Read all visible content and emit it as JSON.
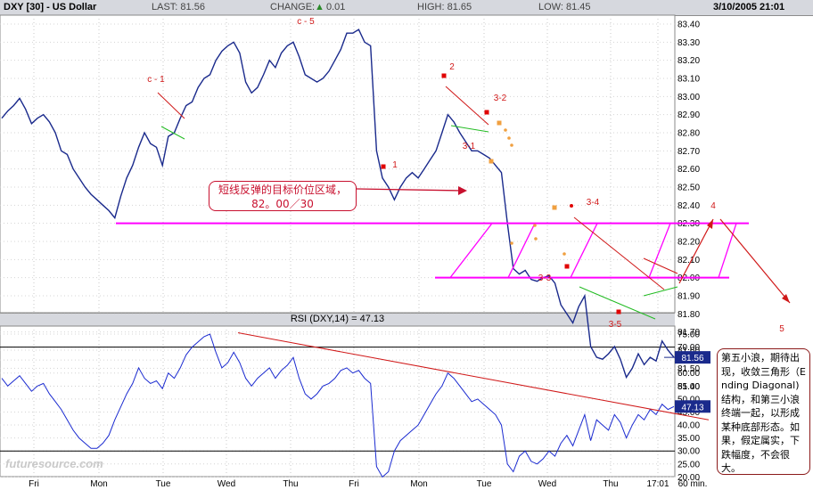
{
  "header": {
    "symbol": "DXY [30] - US Dollar",
    "last_label": "LAST: 81.56",
    "change_label": "CHANGE:",
    "change_value": "0.01",
    "high_label": "HIGH: 81.65",
    "low_label": "LOW: 81.45",
    "datetime": "3/10/2005 21:01"
  },
  "rsi_title": "RSI (DXY,14) = 47.13",
  "price_badge": "81.56",
  "rsi_badge": "47.13",
  "period_label": "60 min.",
  "watermark": "futuresource.com",
  "callout1": {
    "line1": "短线反弹的目标价位区域，",
    "line2": "82。00／30"
  },
  "callout2": {
    "text": "第五小浪，期待出现，收敛三角形（Ending Diagonal)结构，和第三小浪终端一起，以形成某种底部形态。如果，假定属实，下跌幅度，不会很大。"
  },
  "chart_data": [
    {
      "type": "line",
      "title": "DXY [30] - US Dollar",
      "ylim": [
        81.25,
        83.5
      ],
      "yticks": [
        "83.40",
        "83.30",
        "83.20",
        "83.10",
        "83.00",
        "82.90",
        "82.80",
        "82.70",
        "82.60",
        "82.50",
        "82.40",
        "82.30",
        "82.20",
        "82.10",
        "82.00",
        "81.90",
        "81.80",
        "81.70",
        "81.60",
        "81.50",
        "81.40"
      ],
      "yvalues": [
        83.4,
        83.3,
        83.2,
        83.1,
        83.0,
        82.9,
        82.8,
        82.7,
        82.6,
        82.5,
        82.4,
        82.3,
        82.2,
        82.1,
        82.0,
        81.9,
        81.8,
        81.7,
        81.6,
        81.5,
        81.4
      ],
      "xticks": [
        "Fri",
        "Mon",
        "Tue",
        "Wed",
        "Thu",
        "Fri",
        "Mon",
        "Tue",
        "Wed",
        "Thu",
        "17:01"
      ],
      "xlabel": "60 min.",
      "series": [
        {
          "values": [
            82.88,
            82.92,
            82.95,
            82.99,
            82.93,
            82.85,
            82.88,
            82.9,
            82.86,
            82.8,
            82.7,
            82.68,
            82.6,
            82.55,
            82.5,
            82.46,
            82.43,
            82.4,
            82.37,
            82.33,
            82.45,
            82.55,
            82.62,
            82.72,
            82.8,
            82.74,
            82.72,
            82.62,
            82.78,
            82.8,
            82.88,
            82.95,
            82.97,
            83.05,
            83.1,
            83.12,
            83.2,
            83.25,
            83.28,
            83.3,
            83.24,
            83.08,
            83.02,
            83.05,
            83.12,
            83.2,
            83.16,
            83.24,
            83.28,
            83.3,
            83.22,
            83.12,
            83.1,
            83.08,
            83.1,
            83.14,
            83.2,
            83.26,
            83.35,
            83.35,
            83.37,
            83.3,
            83.28,
            82.7,
            82.55,
            82.5,
            82.43,
            82.5,
            82.55,
            82.58,
            82.55,
            82.6,
            82.65,
            82.7,
            82.8,
            82.9,
            82.86,
            82.8,
            82.75,
            82.7,
            82.7,
            82.68,
            82.66,
            82.62,
            82.58,
            82.3,
            82.05,
            82.02,
            82.04,
            81.99,
            81.98,
            82.0,
            82.01,
            81.97,
            81.85,
            81.8,
            81.75,
            81.84,
            81.9,
            81.62,
            81.56,
            81.55,
            81.58,
            81.62,
            81.55,
            81.45,
            81.5,
            81.58,
            81.52,
            81.56,
            81.54,
            81.65,
            81.6,
            81.56
          ]
        }
      ],
      "annotations": [
        {
          "text": "c - 5",
          "x": "Thu",
          "y": 83.43
        },
        {
          "text": "c - 1",
          "x": "Tue",
          "y": 82.93
        },
        {
          "text": "2",
          "x": "Mon",
          "y": 83.02
        },
        {
          "text": "1",
          "x": "Fri",
          "y": 82.36
        },
        {
          "text": "3-2",
          "x": "Tue",
          "y": 82.85
        },
        {
          "text": "3-1",
          "x": "Tue",
          "y": 82.58
        },
        {
          "text": "3-4",
          "x": "Wed",
          "y": 82.13
        },
        {
          "text": "3-3",
          "x": "Wed",
          "y": 81.51
        },
        {
          "text": "3-5",
          "x": "Thu",
          "y": 81.33
        },
        {
          "text": "4",
          "x": "Thu",
          "y": 82.1
        },
        {
          "text": "5",
          "x": "Thu",
          "y": 81.28
        }
      ],
      "levels": [
        82.3,
        82.0
      ]
    },
    {
      "type": "line",
      "title": "RSI (DXY,14) = 47.13",
      "ylim": [
        15,
        80
      ],
      "yticks": [
        "75.00",
        "70.00",
        "65.00",
        "60.00",
        "55.00",
        "50.00",
        "45.00",
        "40.00",
        "35.00",
        "30.00",
        "25.00",
        "20.00"
      ],
      "yvalues": [
        75,
        70,
        65,
        60,
        55,
        50,
        45,
        40,
        35,
        30,
        25,
        20
      ],
      "levels": [
        70,
        30
      ],
      "series": [
        {
          "values": [
            58,
            55,
            57,
            59,
            56,
            53,
            55,
            56,
            52,
            49,
            46,
            42,
            38,
            35,
            33,
            31,
            31,
            33,
            36,
            42,
            47,
            52,
            56,
            62,
            58,
            56,
            57,
            54,
            60,
            58,
            62,
            67,
            70,
            72,
            74,
            75,
            68,
            62,
            64,
            68,
            64,
            58,
            55,
            58,
            60,
            62,
            58,
            61,
            63,
            66,
            58,
            52,
            50,
            52,
            55,
            56,
            58,
            61,
            62,
            60,
            61,
            58,
            56,
            24,
            20,
            22,
            30,
            34,
            36,
            38,
            40,
            44,
            48,
            52,
            55,
            60,
            58,
            55,
            52,
            49,
            50,
            48,
            46,
            44,
            40,
            25,
            22,
            28,
            30,
            26,
            25,
            27,
            30,
            28,
            33,
            36,
            32,
            38,
            44,
            34,
            42,
            40,
            38,
            44,
            41,
            35,
            40,
            44,
            42,
            46,
            44,
            48,
            46,
            47.13
          ]
        }
      ]
    }
  ]
}
